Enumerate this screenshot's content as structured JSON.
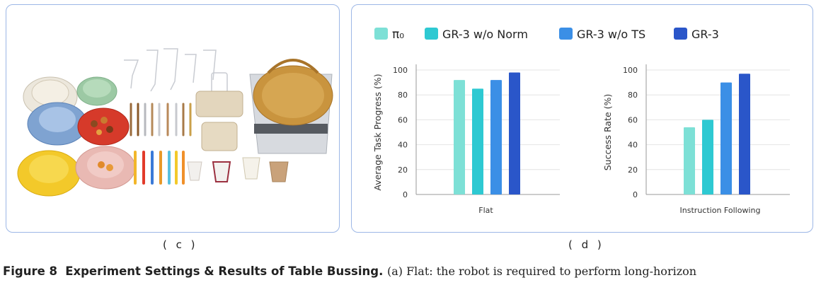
{
  "panel_c": {
    "label": "( c )"
  },
  "panel_d": {
    "label": "( d )"
  },
  "caption": {
    "figure_label": "Figure 8",
    "title": "Experiment Settings & Results of Table Bussing.",
    "text": "(a) Flat: the robot is required to perform long-horizon"
  },
  "colors": {
    "pi0": "#7de0d6",
    "gr3_wo_norm": "#2ec9d2",
    "gr3_wo_ts": "#3b8fe6",
    "gr3": "#2a56c9",
    "panel_border": "#9db7e6"
  },
  "chart_data": [
    {
      "type": "bar",
      "categories": [
        "Flat"
      ],
      "xlabel": "Flat",
      "ylabel": "Average Task Progress (%)",
      "ylim": [
        0,
        100
      ],
      "yticks": [
        0,
        20,
        40,
        60,
        80,
        100
      ],
      "grid": true,
      "legend": "top",
      "series": [
        {
          "name": "π₀",
          "values": [
            92
          ]
        },
        {
          "name": "GR-3 w/o Norm",
          "values": [
            85
          ]
        },
        {
          "name": "GR-3 w/o TS",
          "values": [
            92
          ]
        },
        {
          "name": "GR-3",
          "values": [
            98
          ]
        }
      ]
    },
    {
      "type": "bar",
      "categories": [
        "Instruction Following"
      ],
      "xlabel": "Instruction Following",
      "ylabel": "Success Rate (%)",
      "ylim": [
        0,
        100
      ],
      "yticks": [
        0,
        20,
        40,
        60,
        80,
        100
      ],
      "grid": true,
      "legend": "top",
      "series": [
        {
          "name": "π₀",
          "values": [
            54
          ]
        },
        {
          "name": "GR-3 w/o Norm",
          "values": [
            60
          ]
        },
        {
          "name": "GR-3 w/o TS",
          "values": [
            90
          ]
        },
        {
          "name": "GR-3",
          "values": [
            97
          ]
        }
      ]
    }
  ]
}
